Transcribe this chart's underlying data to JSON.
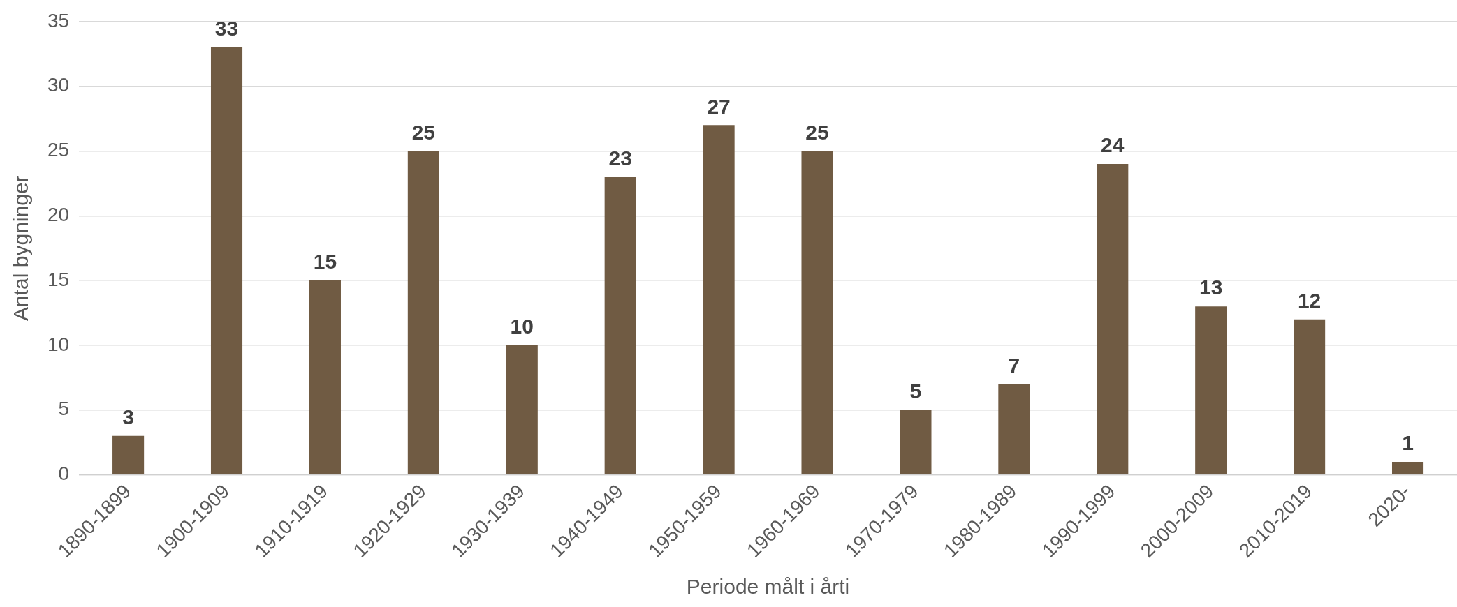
{
  "chart_data": {
    "type": "bar",
    "xlabel": "Periode målt i årti",
    "ylabel": "Antal bygninger",
    "categories": [
      "1890-1899",
      "1900-1909",
      "1910-1919",
      "1920-1929",
      "1930-1939",
      "1940-1949",
      "1950-1959",
      "1960-1969",
      "1970-1979",
      "1980-1989",
      "1990-1999",
      "2000-2009",
      "2010-2019",
      "2020-"
    ],
    "values": [
      3,
      33,
      15,
      25,
      10,
      23,
      27,
      25,
      5,
      7,
      24,
      13,
      12,
      1
    ],
    "color": "#705b43",
    "ylim": [
      0,
      35
    ],
    "yticks": [
      0,
      5,
      10,
      15,
      20,
      25,
      30,
      35
    ],
    "grid": "y",
    "data_labels": true,
    "legend": false
  }
}
